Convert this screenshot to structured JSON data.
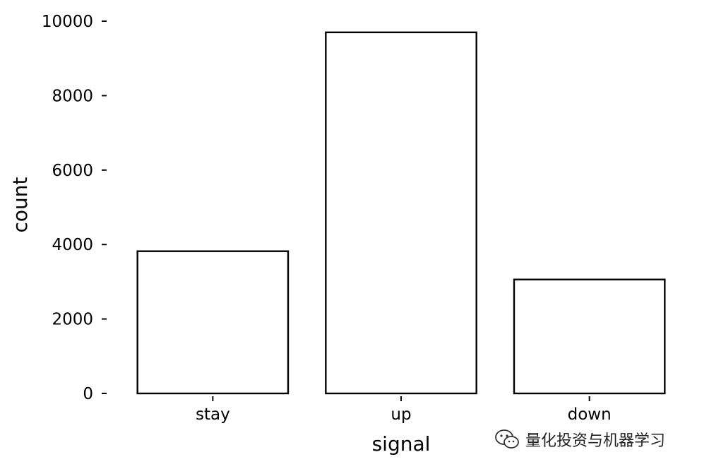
{
  "chart_data": {
    "type": "bar",
    "categories": [
      "stay",
      "up",
      "down"
    ],
    "values": [
      3820,
      9700,
      3060
    ],
    "title": "",
    "xlabel": "signal",
    "ylabel": "count",
    "ylim": [
      0,
      10000
    ],
    "yticks": [
      0,
      2000,
      4000,
      6000,
      8000,
      10000
    ],
    "ytick_labels": [
      "0",
      "2000",
      "4000",
      "6000",
      "8000",
      "10000"
    ],
    "bar_fill": "#ffffff",
    "bar_edge": "#000000",
    "grid": false
  },
  "watermark": {
    "text": "量化投资与机器学习",
    "icon": "wechat-icon"
  }
}
